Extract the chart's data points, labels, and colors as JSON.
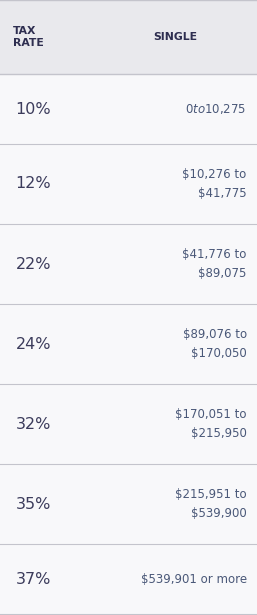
{
  "header_col1": "TAX\nRATE",
  "header_col2": "SINGLE",
  "rows": [
    {
      "rate": "10%",
      "single": "$0 to $10,275",
      "two_line": false
    },
    {
      "rate": "12%",
      "single": "$10,276 to\n$41,775",
      "two_line": true
    },
    {
      "rate": "22%",
      "single": "$41,776 to\n$89,075",
      "two_line": true
    },
    {
      "rate": "24%",
      "single": "$89,076 to\n$170,050",
      "two_line": true
    },
    {
      "rate": "32%",
      "single": "$170,051 to\n$215,950",
      "two_line": true
    },
    {
      "rate": "35%",
      "single": "$215,951 to\n$539,900",
      "two_line": true
    },
    {
      "rate": "37%",
      "single": "$539,901 or more",
      "two_line": false
    }
  ],
  "header_bg": "#e9e9ed",
  "row_bg": "#f8f8fa",
  "divider_color": "#c4c4cc",
  "header_text_color": "#2e2e50",
  "rate_text_color": "#3c3c5c",
  "single_text_color": "#4a5878",
  "fig_width": 2.57,
  "fig_height": 6.15,
  "dpi": 100
}
